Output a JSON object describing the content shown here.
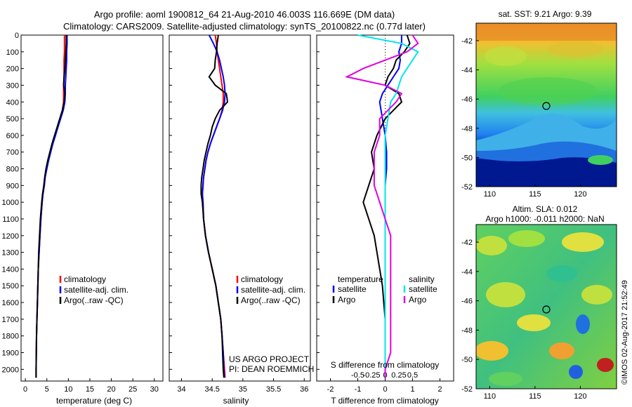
{
  "header": {
    "line1": "Argo profile: aoml 1900812_64 21-Aug-2010 46.003S 116.669E (DM data)",
    "line2": "Climatology: CARS2009. Satellite-adjusted climatology: synTS_20100822.nc (0.77d later)"
  },
  "colors": {
    "climatology": "#ff0000",
    "satellite": "#0000ff",
    "argo": "#000000",
    "sat_salinity": "#00e5ee",
    "argo_salinity": "#e000e0"
  },
  "chart_data": [
    {
      "type": "line",
      "name": "temperature-profile",
      "xlabel": "temperature (deg C)",
      "ylabel": "",
      "xlim": [
        -1,
        32
      ],
      "ylim": [
        2070,
        0
      ],
      "xticks": [
        0,
        5,
        10,
        15,
        20,
        25,
        30
      ],
      "yticks": [
        0,
        100,
        200,
        300,
        400,
        500,
        600,
        700,
        800,
        900,
        1000,
        1100,
        1200,
        1300,
        1400,
        1500,
        1600,
        1700,
        1800,
        1900,
        2000
      ],
      "legend": [
        "climatology",
        "satellite-adj. clim.",
        "Argo(..raw -QC)"
      ],
      "series": [
        {
          "name": "climatology",
          "depth": [
            0,
            50,
            100,
            150,
            200,
            250,
            300,
            350,
            400,
            450,
            500,
            550,
            600,
            650,
            700,
            750,
            800,
            850,
            900,
            950,
            1000,
            1100,
            1200,
            1300,
            1400,
            1500,
            1600,
            1700,
            1800,
            1900,
            2000,
            2050
          ],
          "values": [
            9.1,
            9.1,
            9.1,
            9.0,
            9.0,
            9.0,
            8.9,
            8.9,
            8.9,
            8.6,
            8.1,
            7.5,
            6.9,
            6.3,
            5.8,
            5.3,
            4.9,
            4.6,
            4.4,
            4.1,
            3.9,
            3.6,
            3.4,
            3.2,
            3.0,
            2.9,
            2.8,
            2.7,
            2.6,
            2.55,
            2.5,
            2.5
          ]
        },
        {
          "name": "satellite-adj. clim.",
          "depth": [
            0,
            50,
            100,
            150,
            200,
            250,
            300,
            350,
            400,
            450,
            500,
            550,
            600,
            650,
            700,
            750,
            800,
            850,
            900,
            950,
            1000,
            1100,
            1200,
            1300,
            1400,
            1500,
            1600,
            1700,
            1800,
            1900,
            2000,
            2050
          ],
          "values": [
            9.7,
            9.7,
            9.6,
            9.6,
            9.5,
            9.4,
            9.3,
            9.3,
            9.2,
            8.8,
            8.2,
            7.6,
            7.0,
            6.4,
            5.9,
            5.4,
            5.0,
            4.6,
            4.4,
            4.1,
            3.9,
            3.6,
            3.4,
            3.2,
            3.0,
            2.9,
            2.8,
            2.7,
            2.6,
            2.55,
            2.5,
            2.5
          ]
        },
        {
          "name": "Argo(..raw -QC)",
          "depth": [
            0,
            50,
            100,
            150,
            200,
            250,
            300,
            350,
            400,
            450,
            500,
            550,
            600,
            650,
            700,
            750,
            800,
            850,
            900,
            950,
            1000,
            1100,
            1200,
            1300,
            1400,
            1500,
            1600,
            1700,
            1800,
            1900,
            2000,
            2050
          ],
          "values": [
            9.5,
            9.5,
            9.4,
            9.3,
            9.2,
            9.0,
            8.9,
            9.2,
            9.0,
            8.6,
            8.0,
            7.4,
            6.8,
            6.2,
            5.7,
            5.2,
            4.8,
            4.5,
            4.3,
            4.0,
            3.8,
            3.5,
            3.3,
            3.1,
            3.0,
            2.9,
            2.8,
            2.7,
            2.6,
            2.55,
            2.5,
            2.5
          ]
        }
      ]
    },
    {
      "type": "line",
      "name": "salinity-profile",
      "xlabel": "salinity",
      "xlim": [
        33.8,
        36.1
      ],
      "ylim": [
        2070,
        0
      ],
      "xticks": [
        34,
        34.5,
        35,
        35.5,
        36
      ],
      "xticklabels": [
        "34",
        "34.5",
        "35",
        "35.5",
        "36"
      ],
      "legend": [
        "climatology",
        "satellite-adj. clim.",
        "Argo(..raw -QC)"
      ],
      "series": [
        {
          "name": "climatology",
          "depth": [
            0,
            50,
            100,
            150,
            200,
            250,
            300,
            350,
            400,
            450,
            500,
            550,
            600,
            650,
            700,
            750,
            800,
            850,
            900,
            950,
            1000,
            1100,
            1200,
            1300,
            1400,
            1500,
            1600,
            1700,
            1800,
            1900,
            2000,
            2050
          ],
          "values": [
            34.55,
            34.57,
            34.58,
            34.6,
            34.62,
            34.64,
            34.66,
            34.68,
            34.68,
            34.66,
            34.62,
            34.57,
            34.52,
            34.47,
            34.43,
            34.4,
            34.38,
            34.36,
            34.35,
            34.34,
            34.35,
            34.36,
            34.39,
            34.44,
            34.5,
            34.56,
            34.6,
            34.64,
            34.66,
            34.68,
            34.7,
            34.71
          ]
        },
        {
          "name": "satellite-adj. clim.",
          "depth": [
            0,
            50,
            100,
            150,
            200,
            250,
            300,
            350,
            400,
            450,
            500,
            550,
            600,
            650,
            700,
            750,
            800,
            850,
            900,
            950,
            1000,
            1100,
            1200,
            1300,
            1400,
            1500,
            1600,
            1700,
            1800,
            1900,
            2000,
            2050
          ],
          "values": [
            34.45,
            34.52,
            34.58,
            34.62,
            34.65,
            34.68,
            34.7,
            34.71,
            34.7,
            34.67,
            34.62,
            34.57,
            34.52,
            34.47,
            34.43,
            34.4,
            34.38,
            34.36,
            34.35,
            34.34,
            34.35,
            34.36,
            34.39,
            34.44,
            34.5,
            34.56,
            34.6,
            34.64,
            34.66,
            34.68,
            34.69,
            34.7
          ]
        },
        {
          "name": "Argo(..raw -QC)",
          "depth": [
            0,
            50,
            100,
            150,
            200,
            250,
            300,
            350,
            400,
            450,
            500,
            550,
            600,
            650,
            700,
            750,
            800,
            850,
            900,
            950,
            1000,
            1100,
            1200,
            1300,
            1400,
            1500,
            1600,
            1700,
            1800,
            1900,
            2000,
            2050
          ],
          "values": [
            34.6,
            34.58,
            34.57,
            34.55,
            34.54,
            34.45,
            34.55,
            34.73,
            34.75,
            34.62,
            34.55,
            34.5,
            34.47,
            34.43,
            34.4,
            34.37,
            34.35,
            34.33,
            34.32,
            34.32,
            34.34,
            34.36,
            34.39,
            34.44,
            34.5,
            34.56,
            34.6,
            34.64,
            34.66,
            34.67,
            34.68,
            34.69
          ]
        }
      ]
    },
    {
      "type": "line",
      "name": "difference-profile",
      "xlabel": "T difference from climatology",
      "xlabel2": "S difference from climatology",
      "xlim": [
        -2.5,
        2.5
      ],
      "ylim": [
        2070,
        0
      ],
      "xticks": [
        -2,
        -1,
        0,
        1,
        2
      ],
      "top_ticks": [
        -0.5,
        -0.25,
        0,
        0.25,
        0.5
      ],
      "top_ticklabels": [
        "-0.5",
        "-0.25",
        "0",
        "0.25",
        "0.5"
      ],
      "legend_title_t": "temperature",
      "legend_title_s": "salinity",
      "legend_t": [
        "satellite",
        "Argo"
      ],
      "legend_s": [
        "satellite",
        "Argo"
      ],
      "series": [
        {
          "name": "temp-satellite",
          "depth": [
            0,
            50,
            100,
            150,
            200,
            250,
            300,
            350,
            400,
            500,
            600,
            700,
            800,
            900,
            1000,
            1100,
            1200,
            1300,
            1400,
            1500,
            1600,
            1700,
            1800,
            1900,
            2000,
            2050
          ],
          "values": [
            0.6,
            0.6,
            0.5,
            0.55,
            0.5,
            0.3,
            0.1,
            -0.1,
            -0.2,
            -0.1,
            0.0,
            0.05,
            0.05,
            0.0,
            0.0,
            0.0,
            0.0,
            0.0,
            0.0,
            0.0,
            0.0,
            0.0,
            0.0,
            0.0,
            0.0,
            0.0
          ]
        },
        {
          "name": "temp-argo",
          "depth": [
            0,
            50,
            100,
            150,
            200,
            250,
            300,
            350,
            400,
            500,
            600,
            700,
            800,
            900,
            1000,
            1100,
            1200,
            1300,
            1400,
            1500,
            1600,
            1700,
            1800,
            1900,
            2000,
            2050
          ],
          "values": [
            0.8,
            0.9,
            0.7,
            0.4,
            0.3,
            0.1,
            0.0,
            0.5,
            0.6,
            0.0,
            -0.3,
            -0.5,
            -0.4,
            -0.6,
            -0.8,
            -0.6,
            -0.4,
            -0.3,
            -0.2,
            -0.1,
            -0.05,
            0.0,
            0.0,
            0.0,
            0.0,
            0.0
          ]
        },
        {
          "name": "sal-satellite",
          "depth": [
            0,
            50,
            100,
            150,
            200,
            250,
            300,
            350,
            400,
            500,
            600,
            700,
            800,
            900,
            1000,
            1100,
            1200,
            1300,
            1400,
            1500,
            1600,
            1700,
            1800,
            1900,
            2000,
            2050
          ],
          "values": [
            -0.5,
            0.3,
            0.6,
            0.5,
            0.4,
            0.3,
            0.25,
            0.2,
            0.1,
            0.05,
            0.0,
            0.0,
            0.0,
            0.0,
            0.0,
            0.0,
            0.0,
            0.0,
            0.0,
            0.0,
            0.0,
            0.0,
            0.0,
            0.0,
            0.0,
            0.0
          ]
        },
        {
          "name": "sal-argo",
          "depth": [
            0,
            50,
            100,
            150,
            200,
            250,
            300,
            350,
            400,
            500,
            600,
            700,
            800,
            900,
            1000,
            1100,
            1200,
            1300,
            1400,
            1500,
            1600,
            1700,
            1800,
            1900,
            2000,
            2050
          ],
          "values": [
            0.5,
            0.6,
            0.4,
            0.0,
            -0.4,
            -0.7,
            0.0,
            0.3,
            0.2,
            -0.1,
            -0.1,
            -0.2,
            -0.2,
            -0.2,
            -0.1,
            0.0,
            0.1,
            0.1,
            0.1,
            0.1,
            0.1,
            0.1,
            0.1,
            0.1,
            0.0,
            0.0
          ]
        }
      ]
    }
  ],
  "maps": {
    "sst": {
      "title": "sat. SST: 9.21 Argo: 9.39",
      "lon_ticks": [
        "110",
        "115",
        "120"
      ],
      "lat_ticks": [
        "-42",
        "-44",
        "-46",
        "-48",
        "-50",
        "-52"
      ]
    },
    "sla": {
      "title1": "Altim. SLA: 0.012",
      "title2": "Argo h1000: -0.011 h2000: NaN",
      "lon_ticks": [
        "110",
        "115",
        "120"
      ],
      "lat_ticks": [
        "-42",
        "-44",
        "-46",
        "-48",
        "-50",
        "-52"
      ]
    }
  },
  "notes": {
    "project1": "US ARGO PROJECT",
    "project2": "PI: DEAN ROEMMICH",
    "imos": "©IMOS 02-Aug-2017 21:52:49"
  }
}
